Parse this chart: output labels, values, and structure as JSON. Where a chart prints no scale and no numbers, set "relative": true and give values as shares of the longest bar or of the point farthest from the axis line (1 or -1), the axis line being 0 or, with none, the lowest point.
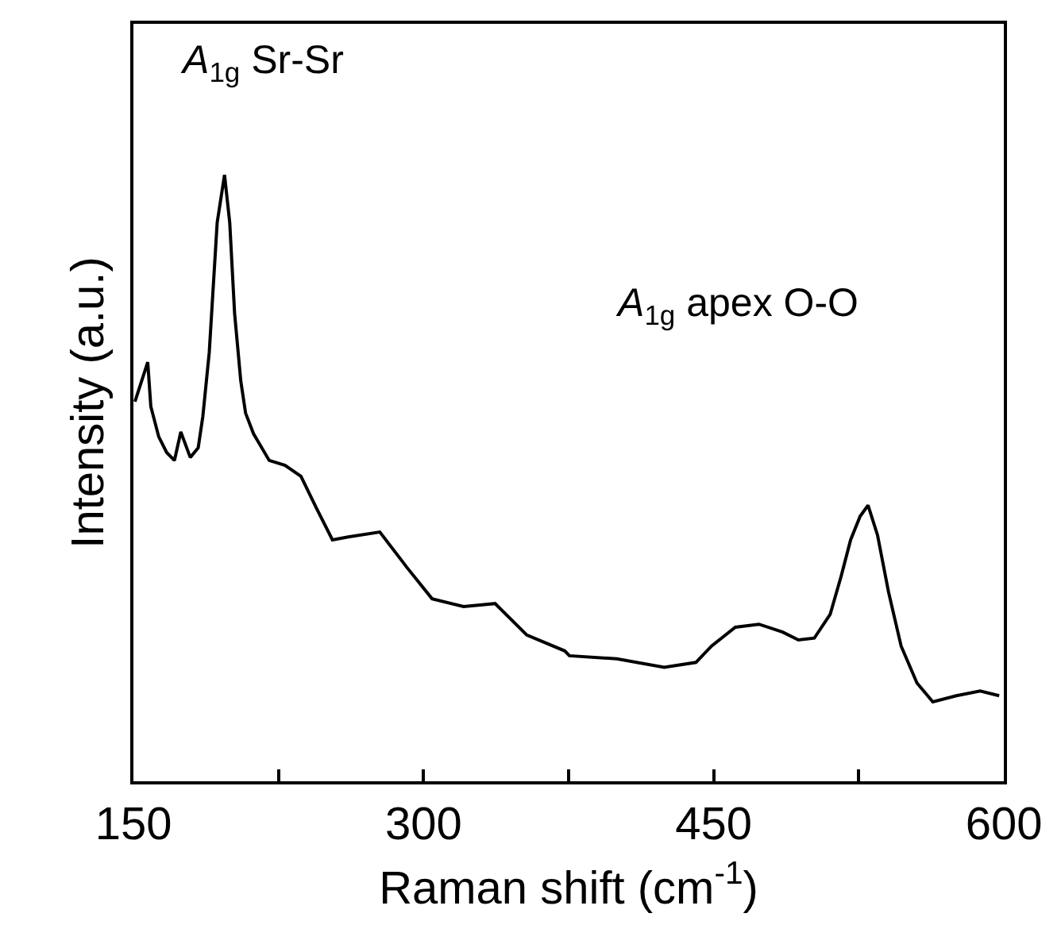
{
  "chart_data": {
    "type": "line",
    "relative": true,
    "xlabel": "Raman shift (cm$^{-1}$)",
    "ylabel": "Intensity (a.u.)",
    "xlim": [
      150,
      600
    ],
    "xticks": [
      150,
      {
        "value": 225,
        "label": null
      },
      300,
      {
        "value": 375,
        "label": null
      },
      450,
      {
        "value": 525,
        "label": null
      },
      600
    ],
    "tick_labels": "x",
    "annotations": [
      "A$_{1g}$ Sr-Sr",
      "A$_{1g}$ apex O-O"
    ],
    "series": [
      {
        "color": "#000000",
        "x": [
          150.8,
          157.4,
          159.0,
          163.1,
          167.2,
          171.2,
          174.5,
          179.4,
          183.5,
          185.9,
          189.2,
          190.8,
          193.3,
          197.1,
          199.8,
          202.3,
          205.5,
          208.0,
          212.1,
          220.2,
          228.4,
          236.6,
          244.7,
          252.9,
          261.1,
          277.4,
          291.3,
          304.4,
          320.7,
          337.0,
          353.4,
          373.0,
          375.4,
          399.9,
          424.4,
          440.8,
          448.9,
          461.2,
          473.4,
          485.7,
          493.8,
          502.0,
          510.2,
          515.9,
          520.8,
          525.7,
          529.8,
          534.7,
          540.4,
          546.9,
          555.1,
          563.3,
          575.5,
          587.8,
          597.6
        ],
        "values": [
          0.626,
          0.691,
          0.618,
          0.568,
          0.542,
          0.529,
          0.576,
          0.534,
          0.55,
          0.602,
          0.707,
          0.791,
          0.921,
          1.0,
          0.921,
          0.772,
          0.66,
          0.607,
          0.573,
          0.529,
          0.521,
          0.503,
          0.45,
          0.398,
          0.403,
          0.411,
          0.353,
          0.301,
          0.288,
          0.293,
          0.241,
          0.215,
          0.207,
          0.202,
          0.188,
          0.196,
          0.223,
          0.254,
          0.259,
          0.246,
          0.233,
          0.236,
          0.275,
          0.338,
          0.398,
          0.437,
          0.455,
          0.406,
          0.312,
          0.223,
          0.162,
          0.131,
          0.141,
          0.149,
          0.141
        ]
      }
    ]
  }
}
